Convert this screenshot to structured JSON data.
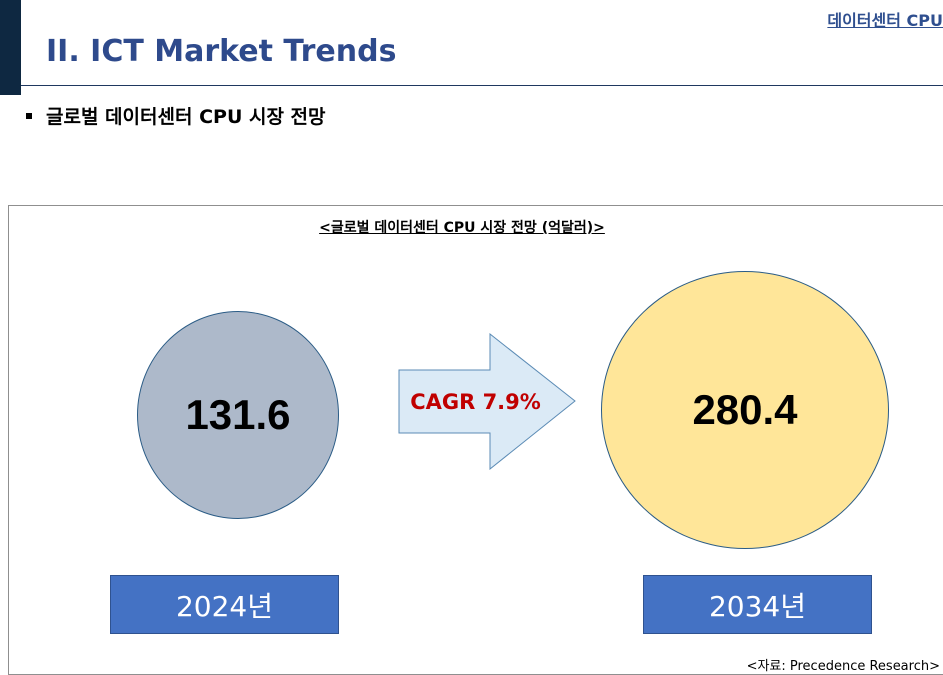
{
  "header": {
    "top_link": "데이터센터 CPU",
    "title": "II. ICT Market Trends"
  },
  "bullet": {
    "text": "글로벌 데이터센터 CPU 시장 전망"
  },
  "figure": {
    "title": "<글로벌 데이터센터 CPU 시장 전망 (억달러)>",
    "value_2024": "131.6",
    "value_2034": "280.4",
    "cagr_label": "CAGR 7.9%",
    "year_2024": "2024년",
    "year_2034": "2034년",
    "source": "<자료: Precedence Research>"
  },
  "colors": {
    "circle_2024": "#adb9ca",
    "circle_2034": "#ffe699",
    "arrow_fill": "#dbeaf6",
    "cagr_text": "#c00000",
    "year_box": "#4472c4",
    "title_text": "#2e4a8c"
  }
}
